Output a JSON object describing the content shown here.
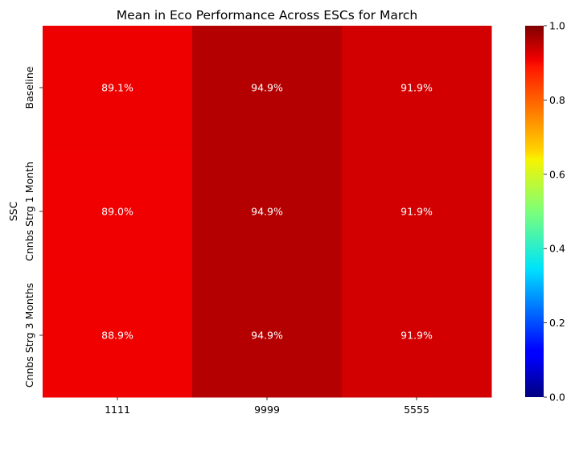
{
  "chart_data": {
    "type": "heatmap",
    "title": "Mean in Eco Performance Across ESCs for March",
    "xlabel": "",
    "ylabel": "SSC",
    "x_categories": [
      "1111",
      "9999",
      "5555"
    ],
    "y_categories": [
      "Baseline",
      "Cnnbs Strg 1 Month",
      "Cnnbs Strg 3 Months"
    ],
    "values": [
      [
        0.891,
        0.949,
        0.919
      ],
      [
        0.89,
        0.949,
        0.919
      ],
      [
        0.889,
        0.949,
        0.919
      ]
    ],
    "cell_labels": [
      [
        "89.1%",
        "94.9%",
        "91.9%"
      ],
      [
        "89.0%",
        "94.9%",
        "91.9%"
      ],
      [
        "88.9%",
        "94.9%",
        "91.9%"
      ]
    ],
    "colormap": "jet",
    "vmin": 0.0,
    "vmax": 1.0,
    "colorbar_ticks": [
      "0.0",
      "0.2",
      "0.4",
      "0.6",
      "0.8",
      "1.0"
    ],
    "colorbar_tick_values": [
      0.0,
      0.2,
      0.4,
      0.6,
      0.8,
      1.0
    ],
    "grid": false
  }
}
